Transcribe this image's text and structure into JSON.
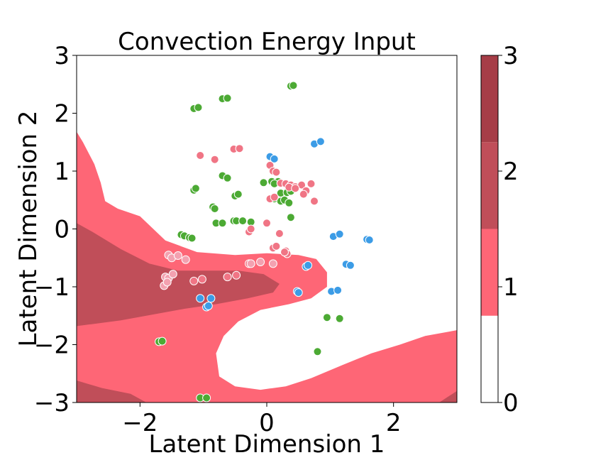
{
  "chart_data": {
    "type": "scatter",
    "title": "Convection Energy Input",
    "xlabel": "Latent Dimension 1",
    "ylabel": "Latent Dimension 2",
    "xlim": [
      -3,
      3
    ],
    "ylim": [
      -3,
      3
    ],
    "xticks": [
      -2,
      0,
      2
    ],
    "yticks": [
      -3,
      -2,
      -1,
      0,
      1,
      2,
      3
    ],
    "xtick_labels": [
      "−2",
      "0",
      "2"
    ],
    "ytick_labels": [
      "−3",
      "−2",
      "−1",
      "0",
      "1",
      "2",
      "3"
    ],
    "grid": false,
    "background": {
      "type": "filled-contour",
      "levels": [
        0,
        0.75,
        1.5,
        2.25,
        3
      ],
      "colors": [
        "#ffffff",
        "#fe6676",
        "#c04e59",
        "#a63d47"
      ],
      "regions": [
        {
          "level": 1,
          "polygons": [
            [
              [
                -3.0,
                1.68
              ],
              [
                -2.9,
                1.5
              ],
              [
                -2.72,
                1.12
              ],
              [
                -2.62,
                0.8
              ],
              [
                -2.55,
                0.48
              ],
              [
                -2.35,
                0.35
              ],
              [
                -2.0,
                0.22
              ],
              [
                -1.6,
                -0.2
              ],
              [
                -1.1,
                -0.4
              ],
              [
                -0.5,
                -0.45
              ],
              [
                0.0,
                -0.42
              ],
              [
                0.5,
                -0.45
              ],
              [
                0.78,
                -0.52
              ],
              [
                0.95,
                -0.75
              ],
              [
                0.95,
                -1.0
              ],
              [
                0.7,
                -1.2
              ],
              [
                0.35,
                -1.3
              ],
              [
                -0.1,
                -1.4
              ],
              [
                -0.45,
                -1.6
              ],
              [
                -0.68,
                -1.85
              ],
              [
                -0.8,
                -2.15
              ],
              [
                -0.75,
                -2.55
              ],
              [
                -0.5,
                -2.72
              ],
              [
                -0.1,
                -2.78
              ],
              [
                0.3,
                -2.72
              ],
              [
                0.7,
                -2.58
              ],
              [
                1.2,
                -2.35
              ],
              [
                1.65,
                -2.15
              ],
              [
                2.1,
                -2.0
              ],
              [
                2.5,
                -1.85
              ],
              [
                3.0,
                -1.75
              ],
              [
                3.0,
                -3.0
              ],
              [
                -3.0,
                -3.0
              ]
            ]
          ]
        },
        {
          "level": 2,
          "polygons": [
            [
              [
                -3.0,
                0.1
              ],
              [
                -2.75,
                -0.05
              ],
              [
                -2.3,
                -0.35
              ],
              [
                -1.85,
                -0.6
              ],
              [
                -1.4,
                -0.72
              ],
              [
                -0.9,
                -0.72
              ],
              [
                -0.45,
                -0.72
              ],
              [
                -0.05,
                -0.78
              ],
              [
                0.2,
                -0.95
              ],
              [
                0.1,
                -1.1
              ],
              [
                -0.3,
                -1.2
              ],
              [
                -0.8,
                -1.3
              ],
              [
                -1.3,
                -1.38
              ],
              [
                -1.8,
                -1.48
              ],
              [
                -2.3,
                -1.58
              ],
              [
                -3.0,
                -1.68
              ]
            ],
            [
              [
                -3.0,
                -2.62
              ],
              [
                -2.6,
                -2.75
              ],
              [
                -2.15,
                -2.85
              ],
              [
                -1.9,
                -3.0
              ],
              [
                -3.0,
                -3.0
              ]
            ],
            [
              [
                2.72,
                -3.0
              ],
              [
                3.0,
                -2.8
              ],
              [
                3.0,
                -3.0
              ]
            ]
          ]
        }
      ]
    },
    "series": [
      {
        "color": "#4caa34",
        "x": [
          0.38,
          0.42,
          -0.7,
          -0.62,
          -1.15,
          -1.08,
          -0.7,
          -0.62,
          -1.15,
          -1.12,
          -0.5,
          -0.45,
          -0.85,
          -0.82,
          -0.8,
          -0.7,
          -0.52,
          -0.48,
          -0.38,
          -0.25,
          -0.05,
          0.08,
          0.18,
          0.12,
          0.22,
          0.32,
          0.38,
          0.12,
          0.22,
          0.28,
          0.35,
          -1.35,
          -1.3,
          -1.22,
          -1.18,
          0.95,
          1.15,
          0.8,
          -1.7,
          -1.65,
          -1.05,
          -0.95,
          0.38
        ],
        "y": [
          2.47,
          2.48,
          2.25,
          2.26,
          2.08,
          2.1,
          0.92,
          0.88,
          0.67,
          0.7,
          0.57,
          0.6,
          0.38,
          0.35,
          0.1,
          0.1,
          0.14,
          0.14,
          0.14,
          0.12,
          0.8,
          0.82,
          0.82,
          0.78,
          0.62,
          0.63,
          0.65,
          0.52,
          0.48,
          0.5,
          0.45,
          -0.1,
          -0.12,
          -0.15,
          -0.16,
          -1.53,
          -1.55,
          -2.12,
          -1.95,
          -1.94,
          -2.92,
          -2.92,
          0.2
        ]
      },
      {
        "color": "#f07585",
        "x": [
          -1.05,
          -0.82,
          -0.52,
          -0.43,
          0.05,
          0.1,
          0.15,
          0.22,
          0.3,
          0.38,
          0.45,
          0.55,
          0.62,
          0.7,
          0.75,
          0.35,
          0.45,
          0.58,
          0.05,
          0.12,
          0.0,
          0.2,
          0.3,
          0.32,
          0.1,
          0.15,
          0.28,
          -0.28,
          -0.25,
          -1.15,
          -1.02,
          -0.62,
          -0.48,
          -0.28
        ],
        "y": [
          1.27,
          1.2,
          1.38,
          1.39,
          1.1,
          1.0,
          0.98,
          0.79,
          0.78,
          0.76,
          0.73,
          0.76,
          0.66,
          0.78,
          0.48,
          0.72,
          0.7,
          0.6,
          0.52,
          0.55,
          0.1,
          -0.08,
          -0.38,
          -0.43,
          -0.33,
          -0.3,
          -0.4,
          -0.05,
          0.0,
          -0.9,
          -0.87,
          -0.83,
          -0.8,
          -0.6
        ]
      },
      {
        "color": "#f3a1b0",
        "x": [
          -1.55,
          -1.5,
          -1.4,
          -1.28,
          -1.6,
          -1.55,
          -1.48,
          -1.62,
          -1.57,
          -0.25,
          -0.1,
          0.1
        ],
        "y": [
          -0.45,
          -0.5,
          -0.46,
          -0.53,
          -0.83,
          -0.85,
          -0.78,
          -0.98,
          -0.92,
          -0.6,
          -0.57,
          -0.6
        ]
      },
      {
        "color": "#3c9ce6",
        "x": [
          0.05,
          0.12,
          0.75,
          0.85,
          1.05,
          1.15,
          1.58,
          1.62,
          1.25,
          1.32,
          0.62,
          0.65,
          0.48,
          0.5,
          1.02,
          1.12,
          -1.05,
          -0.95,
          -0.92,
          -0.88
        ],
        "y": [
          1.25,
          1.21,
          1.47,
          1.51,
          -0.13,
          -0.09,
          -0.18,
          -0.19,
          -0.61,
          -0.63,
          -0.65,
          -0.63,
          -1.08,
          -1.1,
          -1.08,
          -1.06,
          -1.2,
          -1.35,
          -1.33,
          -1.2
        ]
      }
    ],
    "colorbar": {
      "vmin": 0,
      "vmax": 3,
      "ticks": [
        0,
        1,
        2,
        3
      ],
      "tick_labels": [
        "0",
        "1",
        "2",
        "3"
      ],
      "bands": [
        {
          "from": 0,
          "to": 0.75,
          "color": "#ffffff"
        },
        {
          "from": 0.75,
          "to": 1.5,
          "color": "#fe6676"
        },
        {
          "from": 1.5,
          "to": 2.25,
          "color": "#c04e59"
        },
        {
          "from": 2.25,
          "to": 3,
          "color": "#a63d47"
        }
      ]
    }
  }
}
